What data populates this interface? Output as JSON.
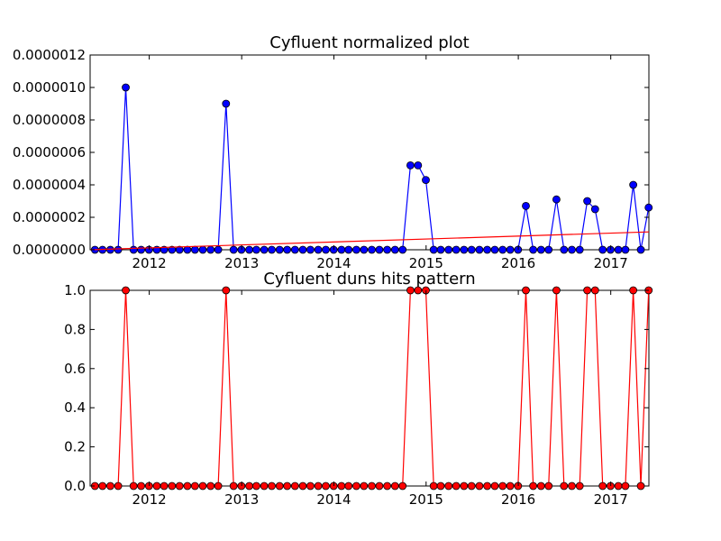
{
  "colors": {
    "top_series": "#0000ff",
    "top_marker_edge": "#000000",
    "trend": "#ff0000",
    "bottom_series": "#ff0000",
    "bottom_marker_edge": "#000000",
    "axes": "#000000",
    "background": "#ffffff"
  },
  "chart_data": [
    {
      "type": "line",
      "title": "Cyfluent normalized plot",
      "xlabel": "",
      "ylabel": "",
      "xlim": [
        "2011-05-12",
        "2017-06-01"
      ],
      "ylim": [
        0,
        1.2e-06
      ],
      "grid": false,
      "legend": "none",
      "x_ticks": [
        "2012",
        "2013",
        "2014",
        "2015",
        "2016",
        "2017"
      ],
      "y_ticks": [
        "0.0000000",
        "0.0000002",
        "0.0000004",
        "0.0000006",
        "0.0000008",
        "0.0000010",
        "0.0000012"
      ],
      "series": [
        {
          "marker": "circle",
          "x": [
            "2011-05-31",
            "2011-06-30",
            "2011-07-31",
            "2011-08-31",
            "2011-09-30",
            "2011-10-31",
            "2011-11-30",
            "2011-12-31",
            "2012-01-31",
            "2012-02-29",
            "2012-03-31",
            "2012-04-30",
            "2012-05-31",
            "2012-06-30",
            "2012-07-31",
            "2012-08-31",
            "2012-09-30",
            "2012-10-31",
            "2012-11-30",
            "2012-12-31",
            "2013-01-31",
            "2013-02-28",
            "2013-03-31",
            "2013-04-30",
            "2013-05-31",
            "2013-06-30",
            "2013-07-31",
            "2013-08-31",
            "2013-09-30",
            "2013-10-31",
            "2013-11-30",
            "2013-12-31",
            "2014-01-31",
            "2014-02-28",
            "2014-03-31",
            "2014-04-30",
            "2014-05-31",
            "2014-06-30",
            "2014-07-31",
            "2014-08-31",
            "2014-09-30",
            "2014-10-31",
            "2014-11-30",
            "2014-12-31",
            "2015-01-31",
            "2015-02-28",
            "2015-03-31",
            "2015-04-30",
            "2015-05-31",
            "2015-06-30",
            "2015-07-31",
            "2015-08-31",
            "2015-09-30",
            "2015-10-31",
            "2015-11-30",
            "2015-12-31",
            "2016-01-31",
            "2016-02-29",
            "2016-03-31",
            "2016-04-30",
            "2016-05-31",
            "2016-06-30",
            "2016-07-31",
            "2016-08-31",
            "2016-09-30",
            "2016-10-31",
            "2016-11-30",
            "2016-12-31",
            "2017-01-31",
            "2017-02-28",
            "2017-03-31",
            "2017-04-30",
            "2017-05-31"
          ],
          "values": [
            0,
            0,
            0,
            0,
            1e-06,
            0,
            0,
            0,
            0,
            0,
            0,
            0,
            0,
            0,
            0,
            0,
            0,
            9e-07,
            0,
            0,
            0,
            0,
            0,
            0,
            0,
            0,
            0,
            0,
            0,
            0,
            0,
            0,
            0,
            0,
            0,
            0,
            0,
            0,
            0,
            0,
            0,
            5.2e-07,
            5.2e-07,
            4.3e-07,
            0,
            0,
            0,
            0,
            0,
            0,
            0,
            0,
            0,
            0,
            0,
            0,
            2.7e-07,
            0,
            0,
            0,
            3.1e-07,
            0,
            0,
            0,
            3e-07,
            2.5e-07,
            0,
            0,
            0,
            0,
            4e-07,
            0,
            2.6e-07
          ]
        },
        {
          "type": "trend",
          "x": [
            "2011-05-12",
            "2017-06-01"
          ],
          "values": [
            0.0,
            1.1e-07
          ]
        }
      ]
    },
    {
      "type": "line",
      "title": "Cyfluent duns hits pattern",
      "xlabel": "",
      "ylabel": "",
      "xlim": [
        "2011-05-12",
        "2017-06-01"
      ],
      "ylim": [
        0,
        1
      ],
      "grid": false,
      "legend": "none",
      "x_ticks": [
        "2012",
        "2013",
        "2014",
        "2015",
        "2016",
        "2017"
      ],
      "y_ticks": [
        "0.0",
        "0.2",
        "0.4",
        "0.6",
        "0.8",
        "1.0"
      ],
      "series": [
        {
          "marker": "circle",
          "x": [
            "2011-05-31",
            "2011-06-30",
            "2011-07-31",
            "2011-08-31",
            "2011-09-30",
            "2011-10-31",
            "2011-11-30",
            "2011-12-31",
            "2012-01-31",
            "2012-02-29",
            "2012-03-31",
            "2012-04-30",
            "2012-05-31",
            "2012-06-30",
            "2012-07-31",
            "2012-08-31",
            "2012-09-30",
            "2012-10-31",
            "2012-11-30",
            "2012-12-31",
            "2013-01-31",
            "2013-02-28",
            "2013-03-31",
            "2013-04-30",
            "2013-05-31",
            "2013-06-30",
            "2013-07-31",
            "2013-08-31",
            "2013-09-30",
            "2013-10-31",
            "2013-11-30",
            "2013-12-31",
            "2014-01-31",
            "2014-02-28",
            "2014-03-31",
            "2014-04-30",
            "2014-05-31",
            "2014-06-30",
            "2014-07-31",
            "2014-08-31",
            "2014-09-30",
            "2014-10-31",
            "2014-11-30",
            "2014-12-31",
            "2015-01-31",
            "2015-02-28",
            "2015-03-31",
            "2015-04-30",
            "2015-05-31",
            "2015-06-30",
            "2015-07-31",
            "2015-08-31",
            "2015-09-30",
            "2015-10-31",
            "2015-11-30",
            "2015-12-31",
            "2016-01-31",
            "2016-02-29",
            "2016-03-31",
            "2016-04-30",
            "2016-05-31",
            "2016-06-30",
            "2016-07-31",
            "2016-08-31",
            "2016-09-30",
            "2016-10-31",
            "2016-11-30",
            "2016-12-31",
            "2017-01-31",
            "2017-02-28",
            "2017-03-31",
            "2017-04-30",
            "2017-05-31"
          ],
          "values": [
            0,
            0,
            0,
            0,
            1,
            0,
            0,
            0,
            0,
            0,
            0,
            0,
            0,
            0,
            0,
            0,
            0,
            1,
            0,
            0,
            0,
            0,
            0,
            0,
            0,
            0,
            0,
            0,
            0,
            0,
            0,
            0,
            0,
            0,
            0,
            0,
            0,
            0,
            0,
            0,
            0,
            1,
            1,
            1,
            0,
            0,
            0,
            0,
            0,
            0,
            0,
            0,
            0,
            0,
            0,
            0,
            1,
            0,
            0,
            0,
            1,
            0,
            0,
            0,
            1,
            1,
            0,
            0,
            0,
            0,
            1,
            0,
            1
          ]
        }
      ]
    }
  ]
}
